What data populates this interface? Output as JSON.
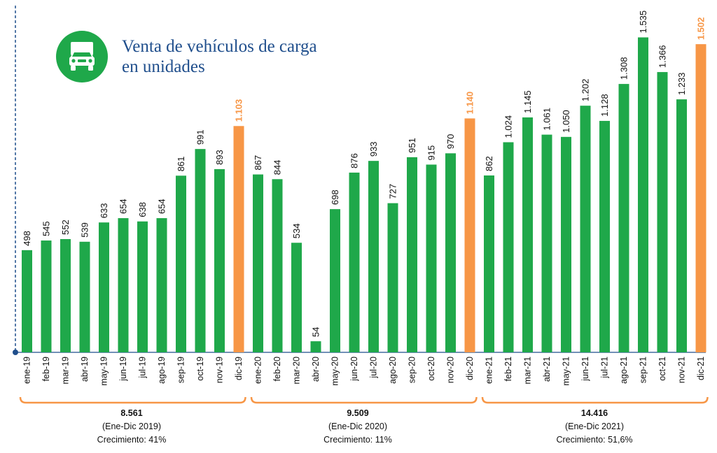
{
  "title_line1": "Venta de vehículos de carga",
  "title_line2": "en unidades",
  "icon": "truck-icon",
  "colors": {
    "bar": "#1fa84a",
    "highlight": "#f79646",
    "title": "#1f4e8c",
    "badge": "#1fa84a"
  },
  "chart_data": {
    "type": "bar",
    "title": "Venta de vehículos de carga en unidades",
    "categories": [
      "ene-19",
      "feb-19",
      "mar-19",
      "abr-19",
      "may-19",
      "jun-19",
      "jul-19",
      "ago-19",
      "sep-19",
      "oct-19",
      "nov-19",
      "dic-19",
      "ene-20",
      "feb-20",
      "mar-20",
      "abr-20",
      "may-20",
      "jun-20",
      "jul-20",
      "ago-20",
      "sep-20",
      "oct-20",
      "nov-20",
      "dic-20",
      "ene-21",
      "feb-21",
      "mar-21",
      "abr-21",
      "may-21",
      "jun-21",
      "jul-21",
      "ago-21",
      "sep-21",
      "oct-21",
      "nov-21",
      "dic-21"
    ],
    "values": [
      498,
      545,
      552,
      539,
      633,
      654,
      638,
      654,
      861,
      991,
      893,
      1103,
      867,
      844,
      534,
      54,
      698,
      876,
      933,
      727,
      951,
      915,
      970,
      1140,
      862,
      1024,
      1145,
      1061,
      1050,
      1202,
      1128,
      1308,
      1535,
      1366,
      1233,
      1502
    ],
    "value_labels": [
      "498",
      "545",
      "552",
      "539",
      "633",
      "654",
      "638",
      "654",
      "861",
      "991",
      "893",
      "1.103",
      "867",
      "844",
      "534",
      "54",
      "698",
      "876",
      "933",
      "727",
      "951",
      "915",
      "970",
      "1.140",
      "862",
      "1.024",
      "1.145",
      "1.061",
      "1.050",
      "1.202",
      "1.128",
      "1.308",
      "1.535",
      "1.366",
      "1.233",
      "1.502"
    ],
    "highlighted": [
      "dic-19",
      "dic-20",
      "dic-21"
    ],
    "ylim": [
      0,
      1600
    ],
    "xlabel": "",
    "ylabel": "",
    "grid": false,
    "legend": "none"
  },
  "summaries": [
    {
      "total": "8.561",
      "period": "(Ene-Dic 2019)",
      "growth": "Crecimiento: 41%"
    },
    {
      "total": "9.509",
      "period": "(Ene-Dic 2020)",
      "growth": "Crecimiento: 11%"
    },
    {
      "total": "14.416",
      "period": "(Ene-Dic 2021)",
      "growth": "Crecimiento: 51,6%"
    }
  ]
}
